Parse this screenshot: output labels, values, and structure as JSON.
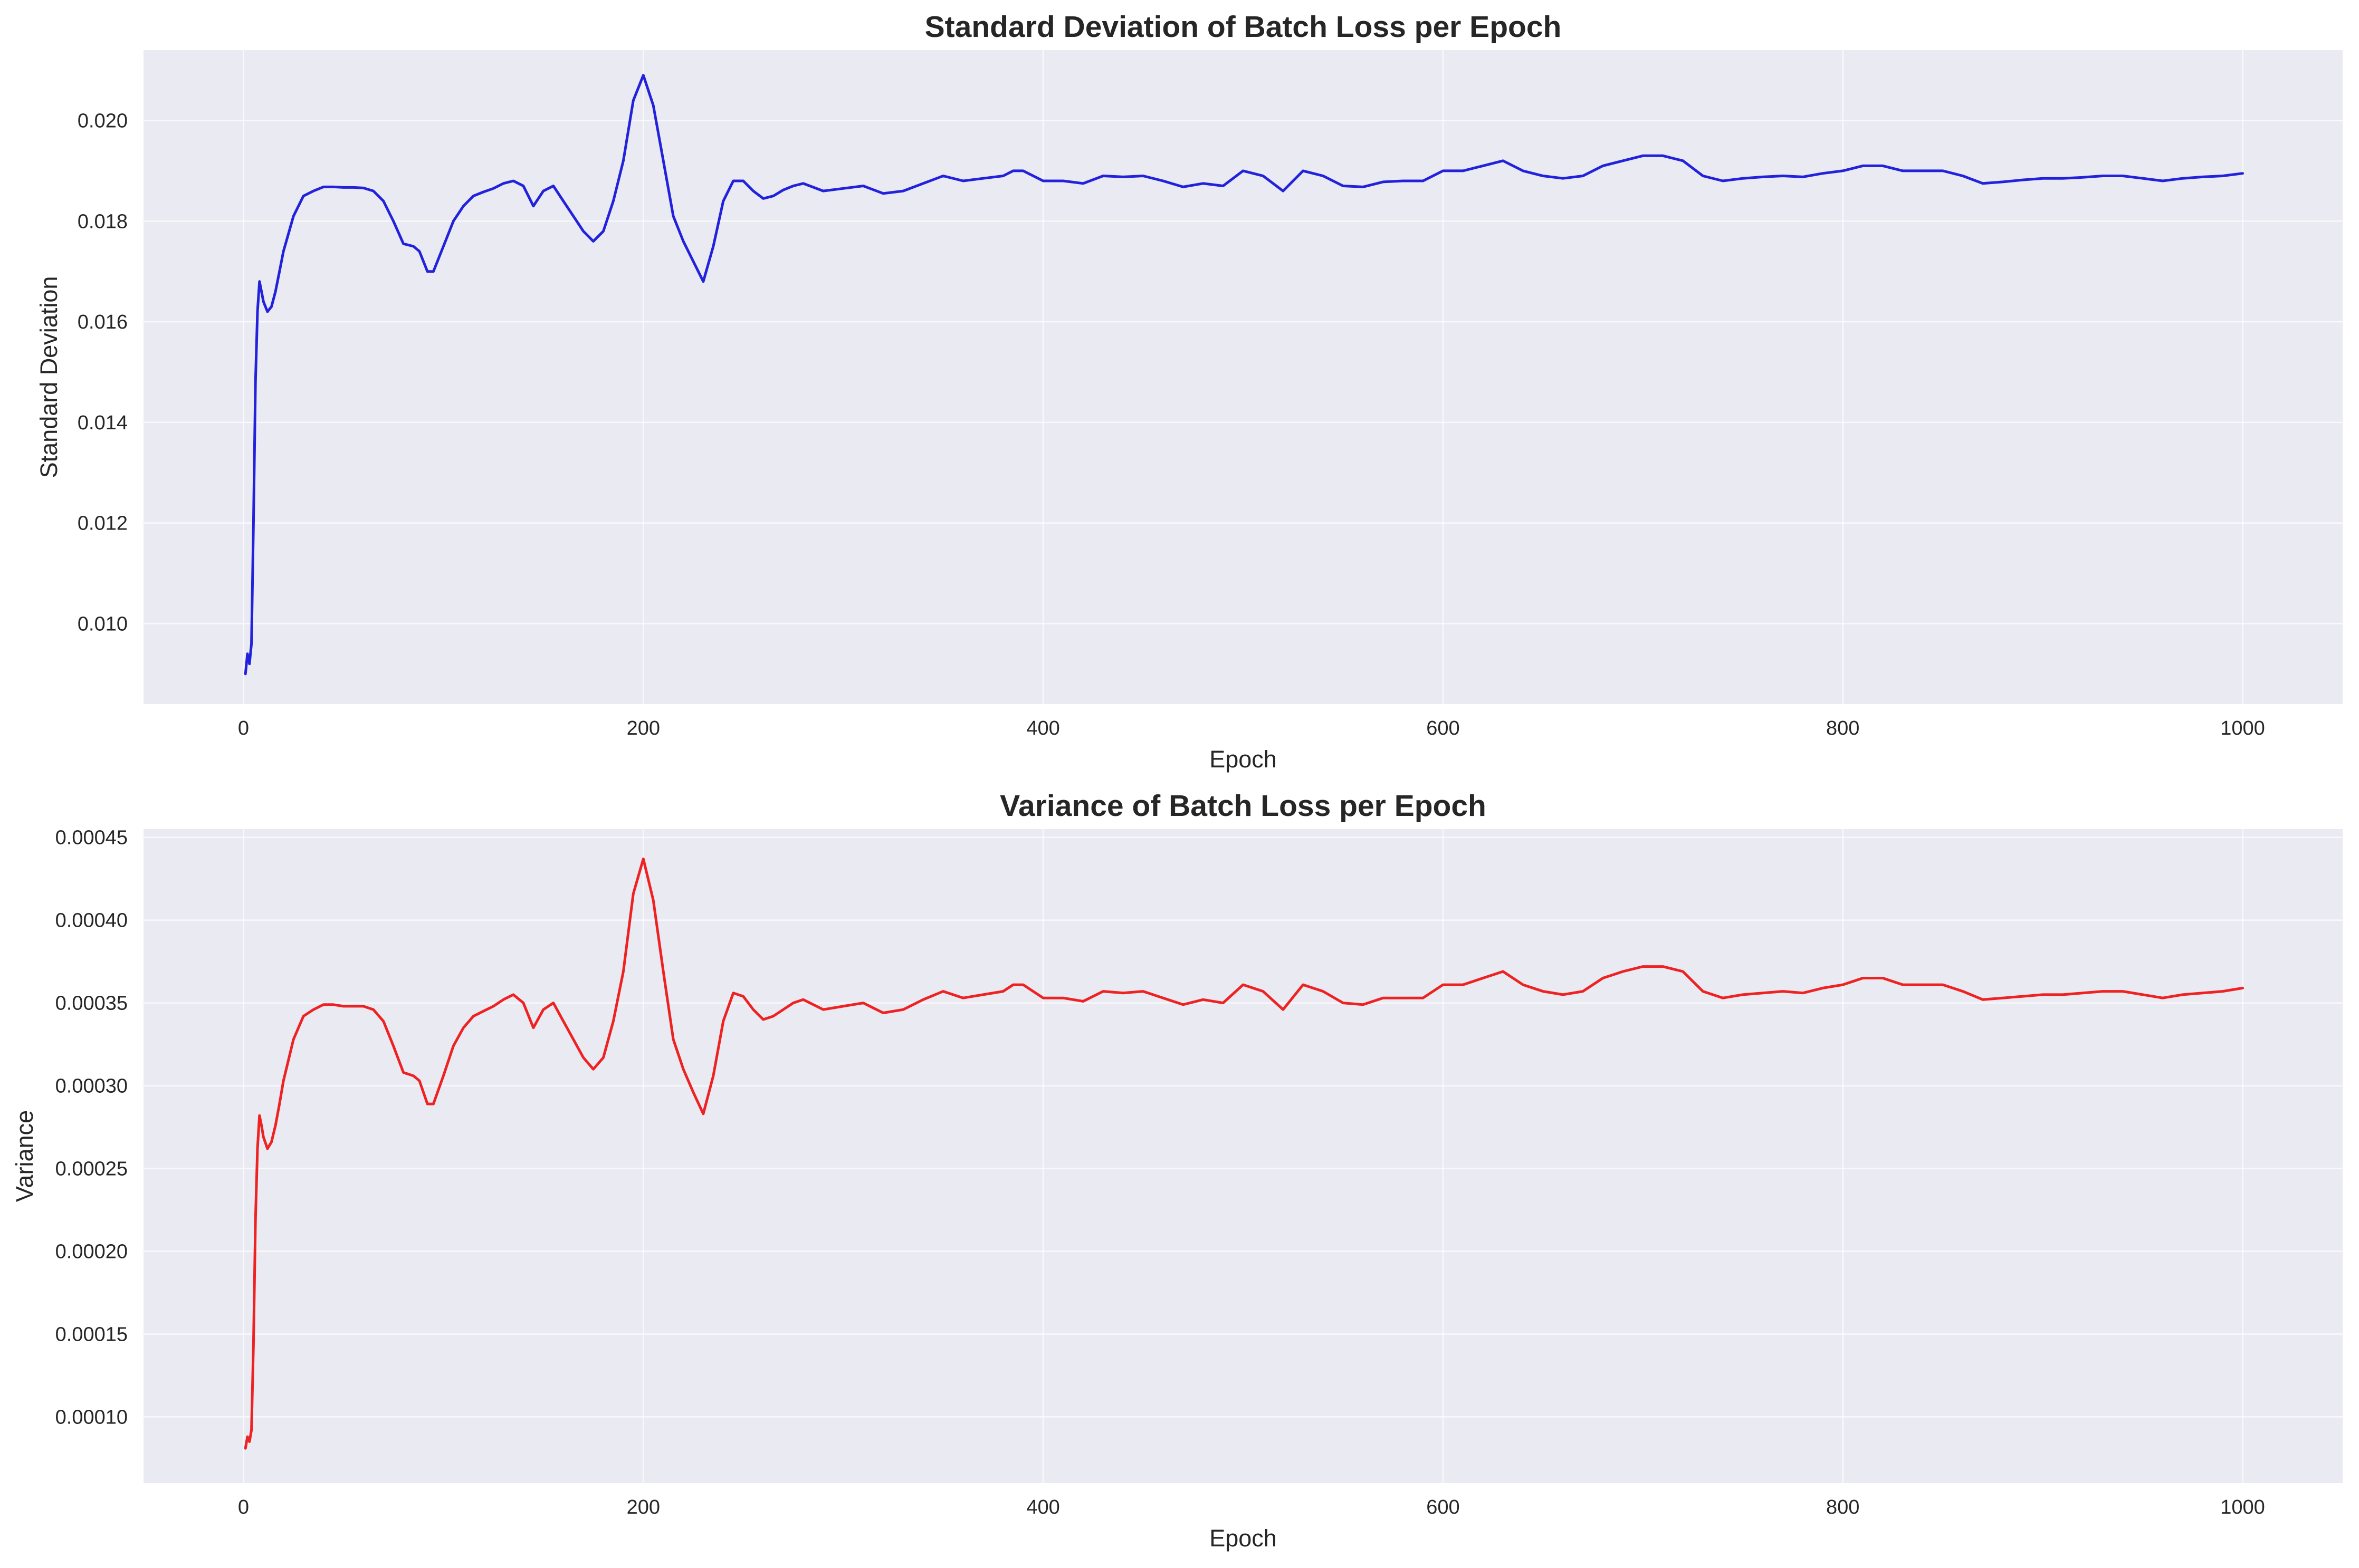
{
  "colors": {
    "figure_background": "#ffffff",
    "plot_background": "#eaeaf2",
    "grid": "#ffffff",
    "text": "#262626"
  },
  "chart_data": [
    {
      "type": "line",
      "title": "Standard Deviation of Batch Loss per Epoch",
      "xlabel": "Epoch",
      "ylabel": "Standard Deviation",
      "xlim": [
        -50,
        1050
      ],
      "ylim": [
        0.0084,
        0.0214
      ],
      "xticks": [
        0,
        200,
        400,
        600,
        800,
        1000
      ],
      "xtick_labels": [
        "0",
        "200",
        "400",
        "600",
        "800",
        "1000"
      ],
      "yticks": [
        0.01,
        0.012,
        0.014,
        0.016,
        0.018,
        0.02
      ],
      "ytick_labels": [
        "0.010",
        "0.012",
        "0.014",
        "0.016",
        "0.018",
        "0.020"
      ],
      "grid": true,
      "series": [
        {
          "color": "#2222dd",
          "x": [
            1,
            2,
            3,
            4,
            5,
            6,
            7,
            8,
            9,
            10,
            12,
            14,
            16,
            18,
            20,
            25,
            30,
            35,
            40,
            45,
            50,
            55,
            60,
            65,
            70,
            75,
            80,
            85,
            88,
            92,
            95,
            100,
            105,
            110,
            115,
            120,
            125,
            130,
            135,
            140,
            145,
            150,
            155,
            160,
            165,
            170,
            175,
            180,
            185,
            190,
            195,
            200,
            205,
            210,
            215,
            220,
            225,
            230,
            235,
            240,
            245,
            250,
            255,
            260,
            265,
            270,
            275,
            280,
            290,
            300,
            310,
            320,
            330,
            340,
            350,
            360,
            370,
            380,
            385,
            390,
            400,
            410,
            420,
            430,
            440,
            450,
            460,
            470,
            480,
            490,
            500,
            510,
            520,
            530,
            540,
            550,
            560,
            570,
            580,
            590,
            600,
            610,
            620,
            630,
            640,
            650,
            660,
            670,
            680,
            690,
            700,
            710,
            720,
            730,
            740,
            750,
            760,
            770,
            780,
            790,
            800,
            810,
            820,
            830,
            840,
            850,
            860,
            870,
            880,
            890,
            900,
            910,
            920,
            930,
            940,
            950,
            960,
            970,
            980,
            990,
            1000
          ],
          "values": [
            0.009,
            0.0094,
            0.0092,
            0.0096,
            0.012,
            0.0148,
            0.0162,
            0.0168,
            0.0166,
            0.0164,
            0.0162,
            0.0163,
            0.0166,
            0.017,
            0.0174,
            0.0181,
            0.0185,
            0.0186,
            0.01868,
            0.01868,
            0.01867,
            0.01867,
            0.01866,
            0.0186,
            0.0184,
            0.018,
            0.01755,
            0.0175,
            0.0174,
            0.017,
            0.017,
            0.0175,
            0.018,
            0.0183,
            0.0185,
            0.01858,
            0.01865,
            0.01875,
            0.0188,
            0.0187,
            0.0183,
            0.0186,
            0.0187,
            0.0184,
            0.0181,
            0.0178,
            0.0176,
            0.0178,
            0.0184,
            0.0192,
            0.0204,
            0.0209,
            0.0203,
            0.0192,
            0.0181,
            0.0176,
            0.0172,
            0.0168,
            0.0175,
            0.0184,
            0.0188,
            0.0188,
            0.0186,
            0.01845,
            0.0185,
            0.01862,
            0.0187,
            0.01875,
            0.0186,
            0.01865,
            0.0187,
            0.01855,
            0.0186,
            0.01875,
            0.0189,
            0.0188,
            0.01885,
            0.0189,
            0.019,
            0.019,
            0.0188,
            0.0188,
            0.01875,
            0.0189,
            0.01888,
            0.0189,
            0.0188,
            0.01868,
            0.01875,
            0.0187,
            0.019,
            0.0189,
            0.0186,
            0.019,
            0.0189,
            0.0187,
            0.01868,
            0.01878,
            0.0188,
            0.0188,
            0.019,
            0.019,
            0.0191,
            0.0192,
            0.019,
            0.0189,
            0.01885,
            0.0189,
            0.0191,
            0.0192,
            0.0193,
            0.0193,
            0.0192,
            0.0189,
            0.0188,
            0.01885,
            0.01888,
            0.0189,
            0.01888,
            0.01895,
            0.019,
            0.0191,
            0.0191,
            0.019,
            0.019,
            0.019,
            0.0189,
            0.01875,
            0.01878,
            0.01882,
            0.01885,
            0.01885,
            0.01887,
            0.0189,
            0.0189,
            0.01885,
            0.0188,
            0.01885,
            0.01888,
            0.0189,
            0.01895
          ]
        }
      ]
    },
    {
      "type": "line",
      "title": "Variance of Batch Loss per Epoch",
      "xlabel": "Epoch",
      "ylabel": "Variance",
      "xlim": [
        -50,
        1050
      ],
      "ylim": [
        6e-05,
        0.000455
      ],
      "xticks": [
        0,
        200,
        400,
        600,
        800,
        1000
      ],
      "xtick_labels": [
        "0",
        "200",
        "400",
        "600",
        "800",
        "1000"
      ],
      "yticks": [
        0.0001,
        0.00015,
        0.0002,
        0.00025,
        0.0003,
        0.00035,
        0.0004,
        0.00045
      ],
      "ytick_labels": [
        "0.00010",
        "0.00015",
        "0.00020",
        "0.00025",
        "0.00030",
        "0.00035",
        "0.00040",
        "0.00045"
      ],
      "grid": true,
      "series": [
        {
          "color": "#ee2222",
          "x": [
            1,
            2,
            3,
            4,
            5,
            6,
            7,
            8,
            9,
            10,
            12,
            14,
            16,
            18,
            20,
            25,
            30,
            35,
            40,
            45,
            50,
            55,
            60,
            65,
            70,
            75,
            80,
            85,
            88,
            92,
            95,
            100,
            105,
            110,
            115,
            120,
            125,
            130,
            135,
            140,
            145,
            150,
            155,
            160,
            165,
            170,
            175,
            180,
            185,
            190,
            195,
            200,
            205,
            210,
            215,
            220,
            225,
            230,
            235,
            240,
            245,
            250,
            255,
            260,
            265,
            270,
            275,
            280,
            290,
            300,
            310,
            320,
            330,
            340,
            350,
            360,
            370,
            380,
            385,
            390,
            400,
            410,
            420,
            430,
            440,
            450,
            460,
            470,
            480,
            490,
            500,
            510,
            520,
            530,
            540,
            550,
            560,
            570,
            580,
            590,
            600,
            610,
            620,
            630,
            640,
            650,
            660,
            670,
            680,
            690,
            700,
            710,
            720,
            730,
            740,
            750,
            760,
            770,
            780,
            790,
            800,
            810,
            820,
            830,
            840,
            850,
            860,
            870,
            880,
            890,
            900,
            910,
            920,
            930,
            940,
            950,
            960,
            970,
            980,
            990,
            1000
          ],
          "values": [
            8.1e-05,
            8.8e-05,
            8.5e-05,
            9.2e-05,
            0.000144,
            0.000219,
            0.000262,
            0.000282,
            0.000276,
            0.000269,
            0.000262,
            0.000266,
            0.000276,
            0.000289,
            0.000303,
            0.000328,
            0.000342,
            0.000346,
            0.000349,
            0.000349,
            0.000348,
            0.000348,
            0.000348,
            0.000346,
            0.000339,
            0.000324,
            0.000308,
            0.000306,
            0.000303,
            0.000289,
            0.000289,
            0.000306,
            0.000324,
            0.000335,
            0.000342,
            0.000345,
            0.000348,
            0.000352,
            0.000355,
            0.00035,
            0.000335,
            0.000346,
            0.00035,
            0.000339,
            0.000328,
            0.000317,
            0.00031,
            0.000317,
            0.000339,
            0.000369,
            0.000416,
            0.000437,
            0.000412,
            0.000369,
            0.000328,
            0.00031,
            0.000296,
            0.000283,
            0.000306,
            0.000339,
            0.000356,
            0.000354,
            0.000346,
            0.00034,
            0.000342,
            0.000346,
            0.00035,
            0.000352,
            0.000346,
            0.000348,
            0.00035,
            0.000344,
            0.000346,
            0.000352,
            0.000357,
            0.000353,
            0.000355,
            0.000357,
            0.000361,
            0.000361,
            0.000353,
            0.000353,
            0.000351,
            0.000357,
            0.000356,
            0.000357,
            0.000353,
            0.000349,
            0.000352,
            0.00035,
            0.000361,
            0.000357,
            0.000346,
            0.000361,
            0.000357,
            0.00035,
            0.000349,
            0.000353,
            0.000353,
            0.000353,
            0.000361,
            0.000361,
            0.000365,
            0.000369,
            0.000361,
            0.000357,
            0.000355,
            0.000357,
            0.000365,
            0.000369,
            0.000372,
            0.000372,
            0.000369,
            0.000357,
            0.000353,
            0.000355,
            0.000356,
            0.000357,
            0.000356,
            0.000359,
            0.000361,
            0.000365,
            0.000365,
            0.000361,
            0.000361,
            0.000361,
            0.000357,
            0.000352,
            0.000353,
            0.000354,
            0.000355,
            0.000355,
            0.000356,
            0.000357,
            0.000357,
            0.000355,
            0.000353,
            0.000355,
            0.000356,
            0.000357,
            0.000359
          ]
        }
      ]
    }
  ]
}
